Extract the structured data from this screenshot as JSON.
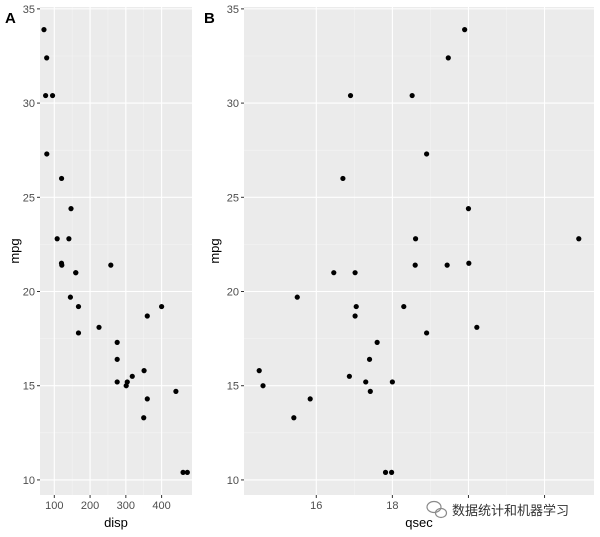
{
  "chart_data": [
    {
      "type": "scatter",
      "tag": "A",
      "xlabel": "disp",
      "ylabel": "mpg",
      "xlim": [
        60,
        485
      ],
      "ylim": [
        9.2,
        35.1
      ],
      "xticks": [
        100,
        200,
        300,
        400
      ],
      "xtick_labels": [
        "100",
        "200",
        "300",
        "400"
      ],
      "yticks": [
        10,
        15,
        20,
        25,
        30,
        35
      ],
      "ytick_labels": [
        "10",
        "15",
        "20",
        "25",
        "30",
        "35"
      ],
      "grid": true,
      "points": [
        {
          "x": 160,
          "y": 21.0
        },
        {
          "x": 160,
          "y": 21.0
        },
        {
          "x": 108,
          "y": 22.8
        },
        {
          "x": 258,
          "y": 21.4
        },
        {
          "x": 360,
          "y": 18.7
        },
        {
          "x": 225,
          "y": 18.1
        },
        {
          "x": 360,
          "y": 14.3
        },
        {
          "x": 146.7,
          "y": 24.4
        },
        {
          "x": 140.8,
          "y": 22.8
        },
        {
          "x": 167.6,
          "y": 19.2
        },
        {
          "x": 167.6,
          "y": 17.8
        },
        {
          "x": 275.8,
          "y": 16.4
        },
        {
          "x": 275.8,
          "y": 17.3
        },
        {
          "x": 275.8,
          "y": 15.2
        },
        {
          "x": 472,
          "y": 10.4
        },
        {
          "x": 460,
          "y": 10.4
        },
        {
          "x": 440,
          "y": 14.7
        },
        {
          "x": 78.7,
          "y": 32.4
        },
        {
          "x": 75.7,
          "y": 30.4
        },
        {
          "x": 71.1,
          "y": 33.9
        },
        {
          "x": 120.1,
          "y": 21.5
        },
        {
          "x": 318,
          "y": 15.5
        },
        {
          "x": 304,
          "y": 15.2
        },
        {
          "x": 350,
          "y": 13.3
        },
        {
          "x": 400,
          "y": 19.2
        },
        {
          "x": 79,
          "y": 27.3
        },
        {
          "x": 120.3,
          "y": 26.0
        },
        {
          "x": 95.1,
          "y": 30.4
        },
        {
          "x": 351,
          "y": 15.8
        },
        {
          "x": 145,
          "y": 19.7
        },
        {
          "x": 301,
          "y": 15.0
        },
        {
          "x": 121,
          "y": 21.4
        }
      ]
    },
    {
      "type": "scatter",
      "tag": "B",
      "xlabel": "qsec",
      "ylabel": "mpg",
      "xlim": [
        14.1,
        23.3
      ],
      "ylim": [
        9.2,
        35.1
      ],
      "xticks": [
        16,
        18,
        20,
        22
      ],
      "xtick_labels": [
        "16",
        "18",
        "",
        ""
      ],
      "yticks": [
        10,
        15,
        20,
        25,
        30,
        35
      ],
      "ytick_labels": [
        "10",
        "15",
        "20",
        "25",
        "30",
        "35"
      ],
      "grid": true,
      "points": [
        {
          "x": 16.46,
          "y": 21.0
        },
        {
          "x": 17.02,
          "y": 21.0
        },
        {
          "x": 18.61,
          "y": 22.8
        },
        {
          "x": 19.44,
          "y": 21.4
        },
        {
          "x": 17.02,
          "y": 18.7
        },
        {
          "x": 20.22,
          "y": 18.1
        },
        {
          "x": 15.84,
          "y": 14.3
        },
        {
          "x": 20.0,
          "y": 24.4
        },
        {
          "x": 22.9,
          "y": 22.8
        },
        {
          "x": 18.3,
          "y": 19.2
        },
        {
          "x": 18.9,
          "y": 17.8
        },
        {
          "x": 17.4,
          "y": 16.4
        },
        {
          "x": 17.6,
          "y": 17.3
        },
        {
          "x": 18.0,
          "y": 15.2
        },
        {
          "x": 17.98,
          "y": 10.4
        },
        {
          "x": 17.82,
          "y": 10.4
        },
        {
          "x": 17.42,
          "y": 14.7
        },
        {
          "x": 19.47,
          "y": 32.4
        },
        {
          "x": 18.52,
          "y": 30.4
        },
        {
          "x": 19.9,
          "y": 33.9
        },
        {
          "x": 20.01,
          "y": 21.5
        },
        {
          "x": 16.87,
          "y": 15.5
        },
        {
          "x": 17.3,
          "y": 15.2
        },
        {
          "x": 15.41,
          "y": 13.3
        },
        {
          "x": 17.05,
          "y": 19.2
        },
        {
          "x": 18.9,
          "y": 27.3
        },
        {
          "x": 16.7,
          "y": 26.0
        },
        {
          "x": 16.9,
          "y": 30.4
        },
        {
          "x": 14.5,
          "y": 15.8
        },
        {
          "x": 15.5,
          "y": 19.7
        },
        {
          "x": 14.6,
          "y": 15.0
        },
        {
          "x": 18.6,
          "y": 21.4
        }
      ]
    }
  ],
  "watermark": {
    "text": "数据统计和机器学习",
    "icon": "wechat-icon"
  }
}
